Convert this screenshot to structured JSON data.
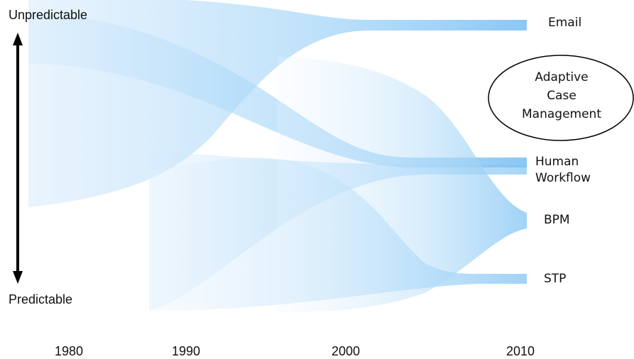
{
  "axis": {
    "top_label": "Unpredictable",
    "bottom_label": "Predictable",
    "years": [
      "1980",
      "1990",
      "2000",
      "2010"
    ]
  },
  "destinations": {
    "email": "Email",
    "human_workflow_line1": "Human",
    "human_workflow_line2": "Workflow",
    "bpm": "BPM",
    "stp": "STP"
  },
  "acm": {
    "line1": "Adaptive",
    "line2": "Case",
    "line3": "Management"
  },
  "colors": {
    "flow": "#8cc8f5",
    "arrow": "#000000"
  }
}
